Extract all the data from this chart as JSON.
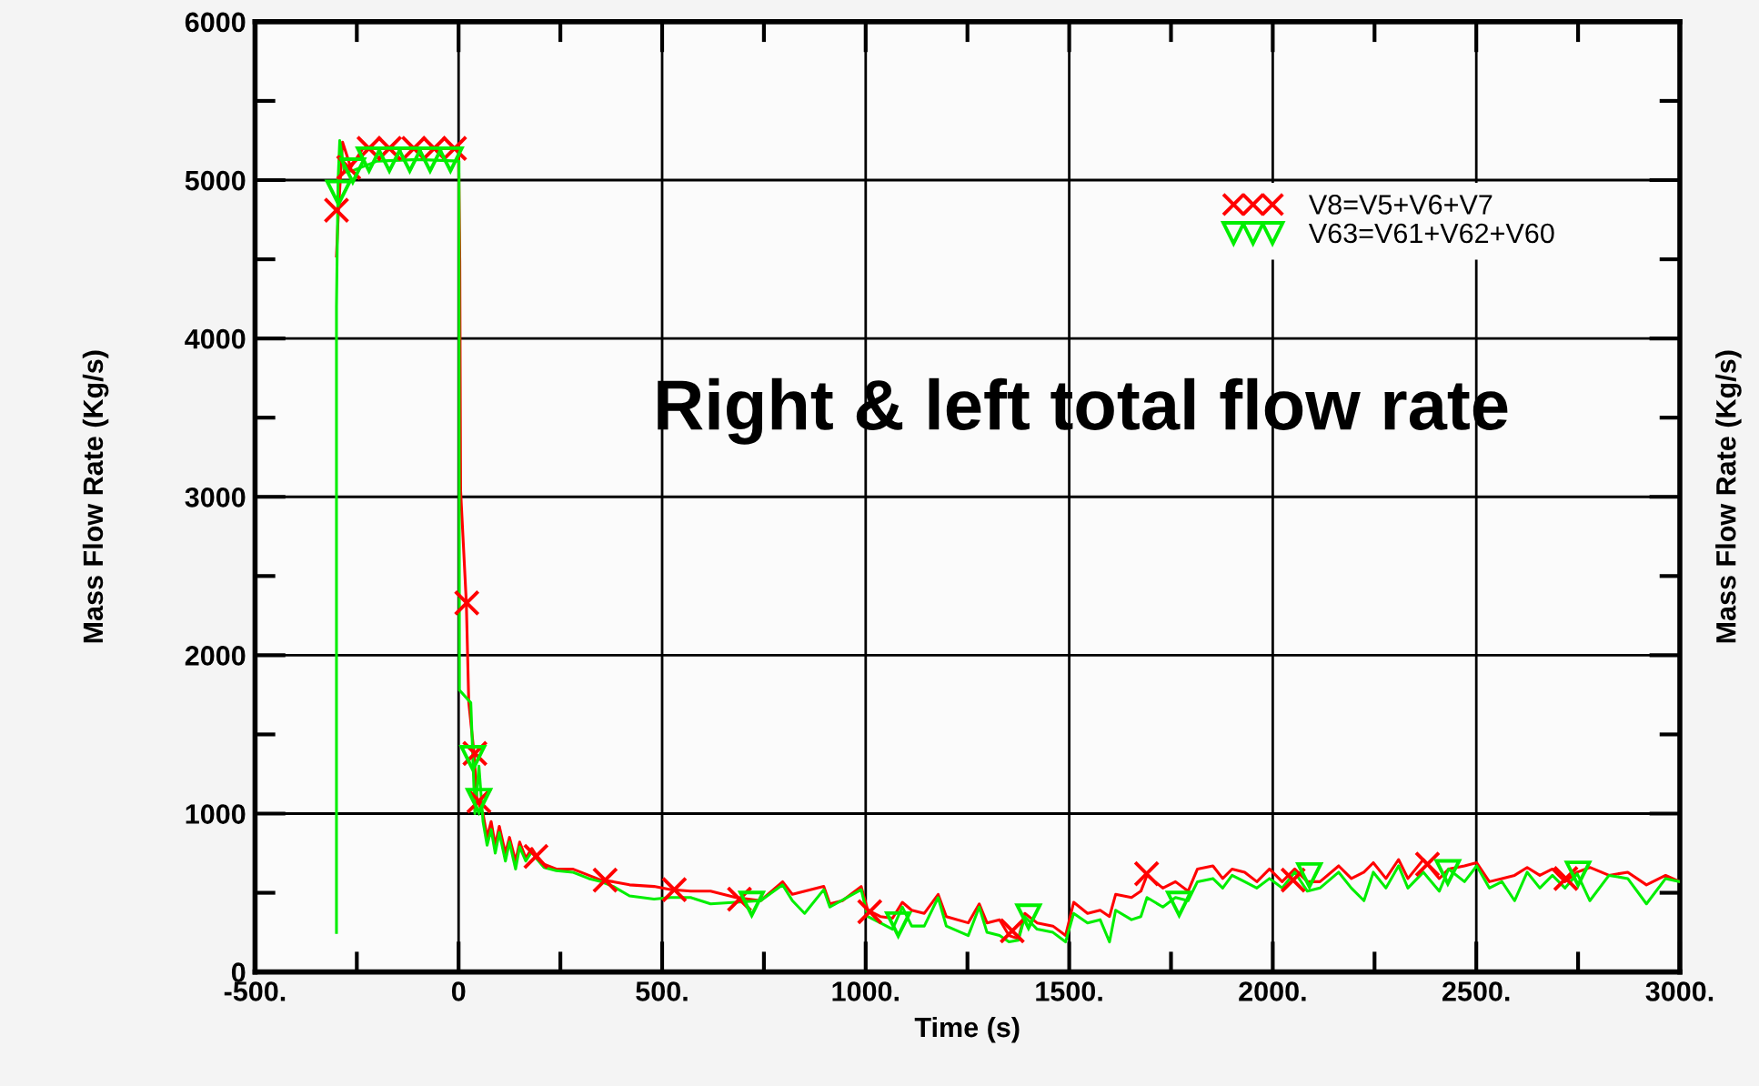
{
  "chart_data": {
    "type": "line",
    "title": "Right & left total flow rate",
    "xlabel": "Time (s)",
    "ylabel": "Mass Flow Rate (Kg/s)",
    "y2label": "Mass Flow Rate (Kg/s)",
    "xlim": [
      -500,
      3000
    ],
    "ylim": [
      0,
      6000
    ],
    "xticks": [
      {
        "value": -500,
        "label": "-500."
      },
      {
        "value": -250,
        "label": null
      },
      0,
      {
        "value": 250,
        "label": null
      },
      {
        "value": 500,
        "label": "500."
      },
      {
        "value": 750,
        "label": null
      },
      {
        "value": 1000,
        "label": "1000."
      },
      {
        "value": 1250,
        "label": null
      },
      {
        "value": 1500,
        "label": "1500."
      },
      {
        "value": 1750,
        "label": null
      },
      {
        "value": 2000,
        "label": "2000."
      },
      {
        "value": 2250,
        "label": null
      },
      {
        "value": 2500,
        "label": "2500."
      },
      {
        "value": 2750,
        "label": null
      },
      {
        "value": 3000,
        "label": "3000."
      }
    ],
    "yticks": [
      0,
      {
        "value": 500,
        "label": null
      },
      1000,
      {
        "value": 1500,
        "label": null
      },
      2000,
      {
        "value": 2500,
        "label": null
      },
      3000,
      {
        "value": 3500,
        "label": null
      },
      4000,
      {
        "value": 4500,
        "label": null
      },
      5000,
      {
        "value": 5500,
        "label": null
      },
      6000
    ],
    "grid": true,
    "legend": "top right",
    "line_style": "solid",
    "series": [
      {
        "name": "V8=V5+V6+V7",
        "color": "#ff0000",
        "x": [
          -300,
          -295,
          -285,
          -265,
          -235,
          -150,
          0,
          3,
          5,
          19,
          25,
          38,
          45,
          60,
          70,
          80,
          90,
          100,
          115,
          125,
          140,
          150,
          165,
          180,
          190,
          210,
          240,
          280,
          320,
          350,
          380,
          420,
          480,
          520,
          570,
          619,
          681,
          742,
          796,
          820,
          897,
          912,
          943,
          989,
          1005,
          1036,
          1066,
          1090,
          1113,
          1144,
          1178,
          1198,
          1252,
          1279,
          1298,
          1329,
          1352,
          1375,
          1391,
          1421,
          1460,
          1491,
          1511,
          1545,
          1576,
          1599,
          1614,
          1653,
          1676,
          1691,
          1730,
          1761,
          1792,
          1815,
          1853,
          1877,
          1900,
          1931,
          1961,
          1992,
          2023,
          2054,
          2085,
          2116,
          2162,
          2193,
          2224,
          2247,
          2278,
          2309,
          2332,
          2370,
          2409,
          2432,
          2471,
          2501,
          2532,
          2563,
          2594,
          2625,
          2656,
          2687,
          2718,
          2748,
          2779,
          2826,
          2872,
          2918,
          2965,
          3000
        ],
        "values": [
          4520,
          4810,
          5240,
          5080,
          5200,
          5200,
          5200,
          4490,
          3040,
          2330,
          1700,
          1380,
          1090,
          1000,
          850,
          950,
          800,
          920,
          750,
          850,
          700,
          820,
          720,
          780,
          740,
          680,
          650,
          650,
          610,
          580,
          570,
          550,
          540,
          520,
          510,
          510,
          470,
          450,
          570,
          490,
          540,
          430,
          450,
          540,
          390,
          350,
          340,
          440,
          390,
          370,
          490,
          350,
          310,
          430,
          310,
          330,
          230,
          210,
          370,
          310,
          290,
          230,
          440,
          370,
          390,
          350,
          490,
          470,
          510,
          610,
          530,
          570,
          510,
          650,
          670,
          590,
          650,
          630,
          570,
          650,
          570,
          650,
          570,
          570,
          670,
          590,
          630,
          690,
          590,
          710,
          590,
          710,
          590,
          650,
          670,
          690,
          570,
          590,
          610,
          660,
          610,
          650,
          570,
          630,
          660,
          610,
          630,
          550,
          610,
          570
        ]
      },
      {
        "name": "V63=V61+V62+V60",
        "color": "#00ee00",
        "x": [
          -300,
          -300,
          -296,
          -292,
          -280,
          -260,
          -200,
          -100,
          1,
          2,
          30,
          35,
          40,
          50,
          60,
          70,
          80,
          90,
          100,
          115,
          125,
          140,
          150,
          165,
          180,
          190,
          210,
          240,
          280,
          320,
          350,
          380,
          420,
          480,
          520,
          570,
          619,
          681,
          742,
          796,
          820,
          850,
          897,
          912,
          989,
          1005,
          1036,
          1066,
          1090,
          1113,
          1144,
          1178,
          1198,
          1252,
          1279,
          1298,
          1329,
          1352,
          1375,
          1391,
          1421,
          1460,
          1491,
          1511,
          1545,
          1576,
          1599,
          1614,
          1653,
          1676,
          1691,
          1730,
          1761,
          1792,
          1815,
          1853,
          1877,
          1900,
          1931,
          1961,
          1992,
          2023,
          2054,
          2085,
          2116,
          2162,
          2193,
          2224,
          2247,
          2278,
          2309,
          2332,
          2370,
          2409,
          2432,
          2471,
          2501,
          2532,
          2563,
          2594,
          2625,
          2656,
          2687,
          2718,
          2748,
          2779,
          2826,
          2872,
          2918,
          2965,
          3000
        ],
        "values": [
          250,
          4200,
          5000,
          5250,
          5050,
          5060,
          5120,
          5130,
          5120,
          1780,
          1700,
          1350,
          1000,
          1300,
          950,
          800,
          900,
          750,
          880,
          700,
          820,
          650,
          790,
          700,
          760,
          720,
          660,
          640,
          630,
          590,
          570,
          540,
          480,
          460,
          470,
          470,
          430,
          440,
          450,
          550,
          450,
          370,
          520,
          410,
          520,
          350,
          310,
          270,
          410,
          290,
          290,
          470,
          290,
          230,
          410,
          250,
          230,
          190,
          200,
          350,
          270,
          250,
          190,
          370,
          310,
          330,
          190,
          390,
          330,
          350,
          470,
          410,
          470,
          450,
          570,
          590,
          530,
          610,
          570,
          530,
          590,
          530,
          630,
          510,
          530,
          630,
          530,
          450,
          630,
          530,
          670,
          530,
          630,
          510,
          650,
          570,
          670,
          530,
          570,
          450,
          630,
          530,
          610,
          530,
          620,
          450,
          610,
          590,
          430,
          590,
          570
        ]
      },
      {
        "type": "scatter",
        "color": "#ff0000",
        "marker": "cross",
        "x": [
          -300,
          -270,
          -220,
          -170,
          -110,
          -60,
          -10,
          20,
          40,
          50,
          190,
          360,
          530,
          690,
          1010,
          1360,
          1690,
          2050,
          2380,
          2720
        ],
        "values": [
          4810,
          5080,
          5200,
          5200,
          5200,
          5200,
          5200,
          2330,
          1380,
          1080,
          730,
          580,
          520,
          460,
          380,
          260,
          620,
          580,
          680,
          590
        ]
      },
      {
        "type": "scatter",
        "color": "#00ee00",
        "marker": "triangle",
        "x": [
          -295,
          -260,
          -220,
          -170,
          -120,
          -70,
          -20,
          35,
          50,
          720,
          1080,
          1400,
          1770,
          2090,
          2430,
          2750
        ],
        "values": [
          4920,
          5060,
          5130,
          5130,
          5130,
          5130,
          5130,
          1350,
          1080,
          430,
          300,
          350,
          430,
          610,
          630,
          620
        ]
      }
    ]
  }
}
